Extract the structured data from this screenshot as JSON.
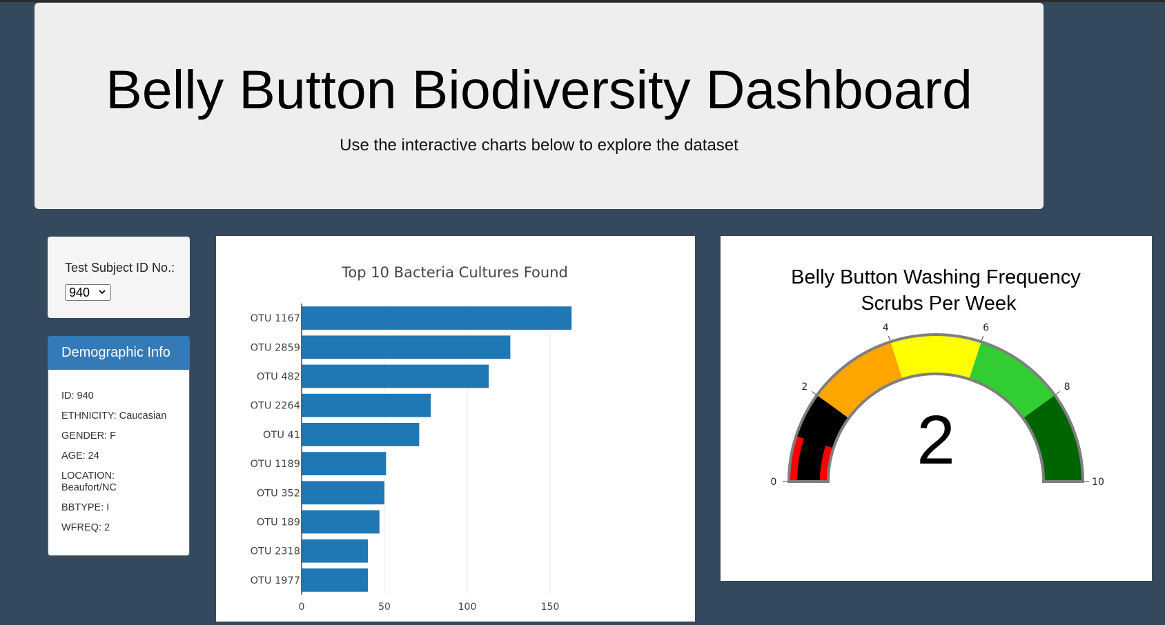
{
  "header": {
    "title": "Belly Button Biodiversity Dashboard",
    "subtitle": "Use the interactive charts below to explore the dataset"
  },
  "selector": {
    "label": "Test Subject ID No.:",
    "selected": "940"
  },
  "demographics": {
    "heading": "Demographic Info",
    "rows": [
      "ID: 940",
      "ETHNICITY: Caucasian",
      "GENDER: F",
      "AGE: 24",
      "LOCATION: Beaufort/NC",
      "BBTYPE: I",
      "WFREQ: 2"
    ]
  },
  "chart_data": [
    {
      "type": "bar",
      "orientation": "horizontal",
      "title": "Top 10 Bacteria Cultures Found",
      "categories": [
        "OTU 1167",
        "OTU 2859",
        "OTU 482",
        "OTU 2264",
        "OTU 41",
        "OTU 1189",
        "OTU 352",
        "OTU 189",
        "OTU 2318",
        "OTU 1977"
      ],
      "values": [
        163,
        126,
        113,
        78,
        71,
        51,
        50,
        47,
        40,
        40
      ],
      "xlim": [
        0,
        170
      ],
      "xticks": [
        0,
        50,
        100,
        150
      ],
      "grid": true,
      "color": "#1f77b4"
    },
    {
      "type": "gauge",
      "title": "Belly Button Washing Frequency",
      "subtitle": "Scrubs Per Week",
      "value": 2,
      "range": [
        0,
        10
      ],
      "ticks": [
        0,
        2,
        4,
        6,
        8,
        10
      ],
      "steps": [
        {
          "range": [
            0,
            1
          ],
          "color": "#ff0000"
        },
        {
          "range": [
            1,
            2
          ],
          "color": "#000000"
        },
        {
          "range": [
            2,
            4
          ],
          "color": "#ffa500"
        },
        {
          "range": [
            4,
            6
          ],
          "color": "#ffff00"
        },
        {
          "range": [
            6,
            8
          ],
          "color": "#32cd32"
        },
        {
          "range": [
            8,
            10
          ],
          "color": "#006400"
        }
      ],
      "bar_color": "#000000"
    }
  ]
}
